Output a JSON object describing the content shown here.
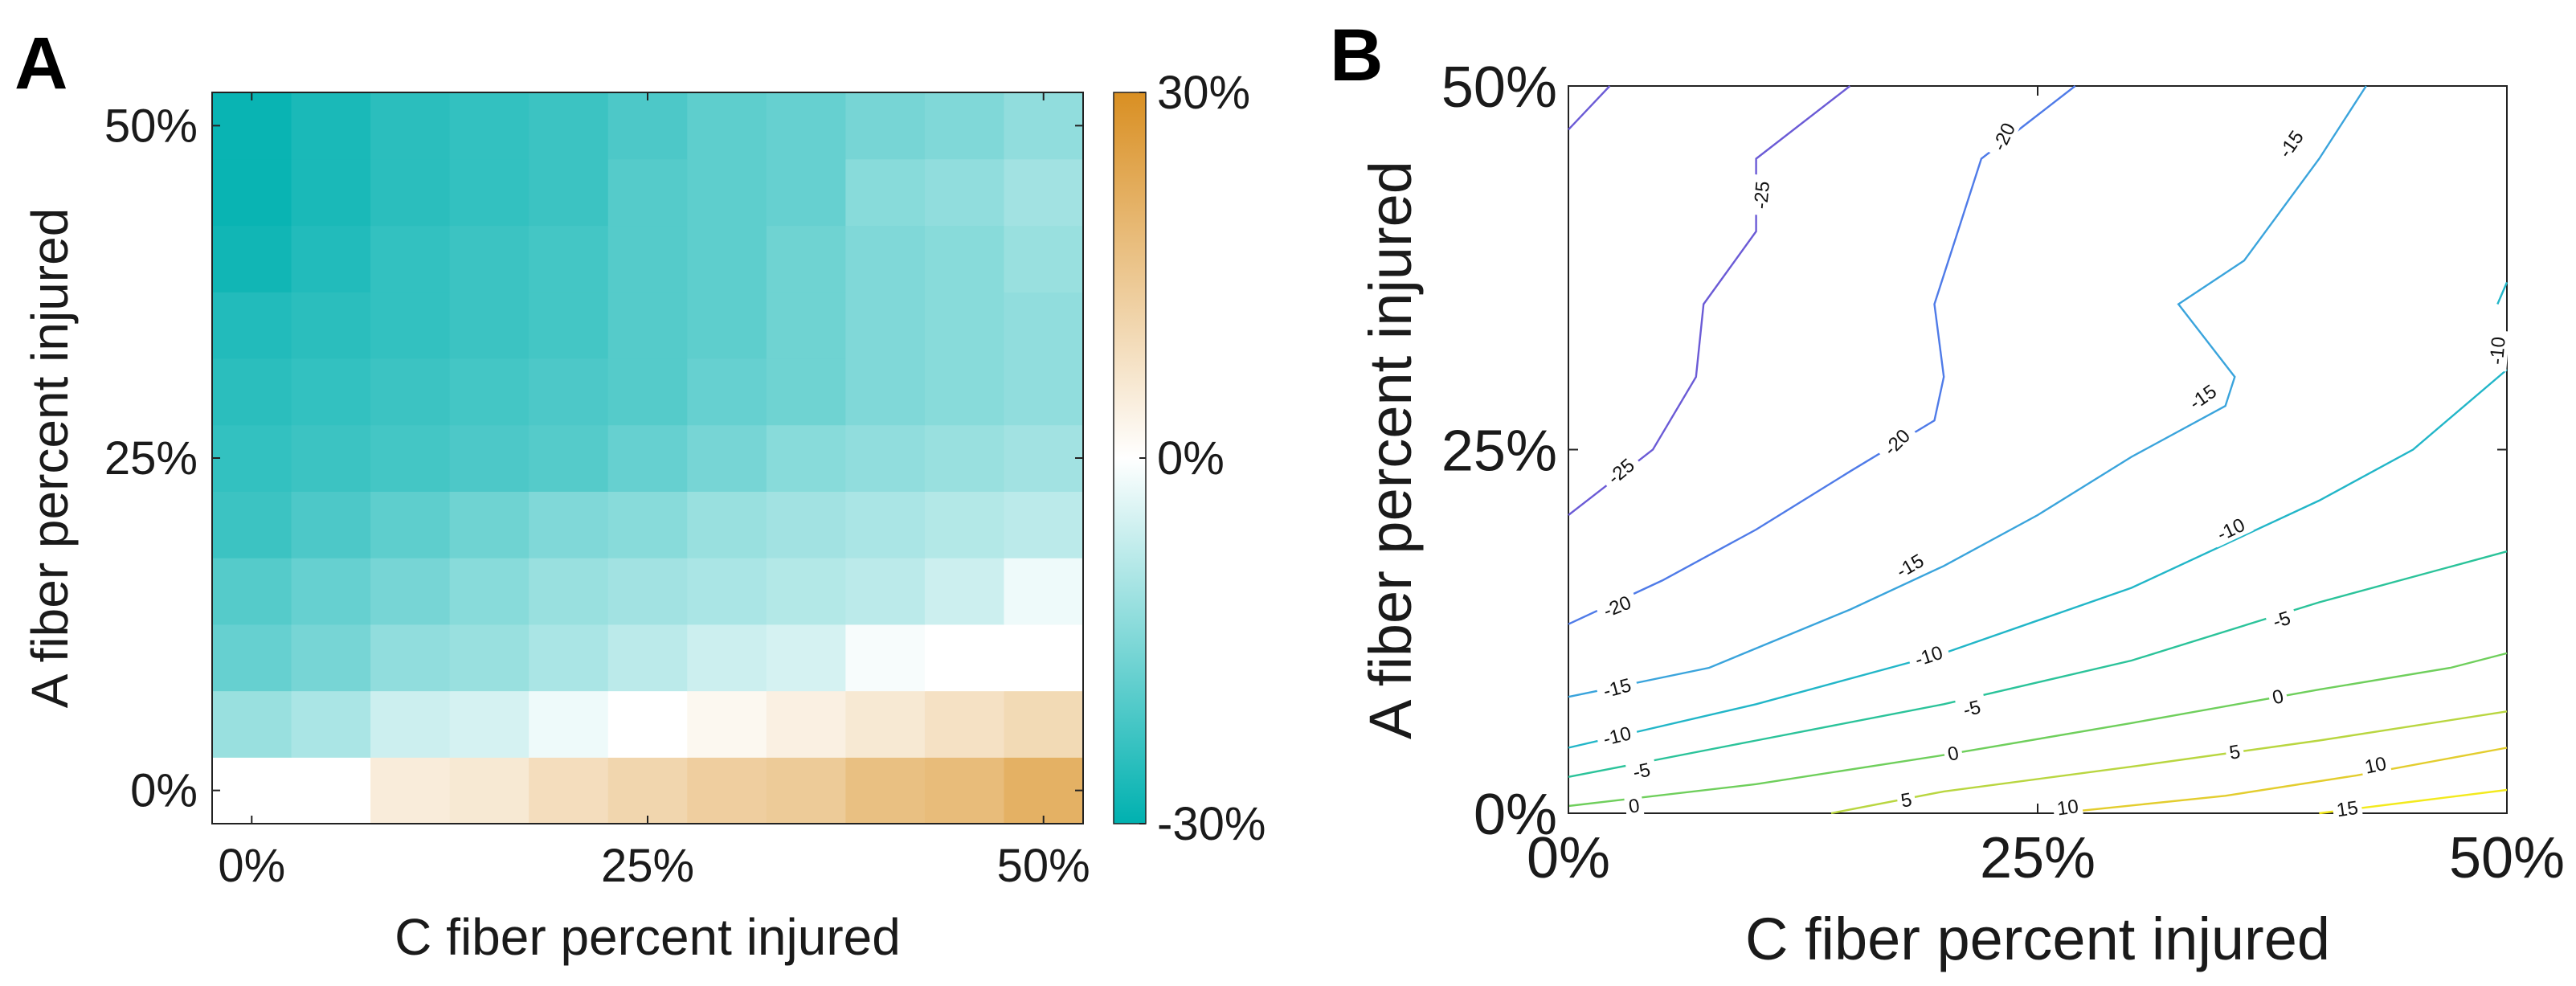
{
  "panels": {
    "a": {
      "letter": "A"
    },
    "b": {
      "letter": "B"
    }
  },
  "chart_data": [
    {
      "type": "heatmap",
      "xlabel": "C fiber percent injured",
      "ylabel": "A fiber percent injured",
      "x_ticks": [
        "0%",
        "25%",
        "50%"
      ],
      "y_ticks": [
        "0%",
        "25%",
        "50%"
      ],
      "xlim": [
        0,
        50
      ],
      "ylim": [
        0,
        50
      ],
      "x": [
        0,
        5,
        10,
        15,
        20,
        25,
        30,
        35,
        40,
        45,
        50
      ],
      "y": [
        0,
        5,
        10,
        15,
        20,
        25,
        30,
        35,
        40,
        45,
        50
      ],
      "values": [
        [
          0,
          0,
          5,
          6,
          9,
          11,
          13,
          14,
          17,
          18,
          21
        ],
        [
          -12,
          -10,
          -6,
          -5,
          -2,
          0,
          2,
          4,
          6,
          8,
          10
        ],
        [
          -18,
          -16,
          -13,
          -12,
          -10,
          -8,
          -6,
          -5,
          -1,
          0,
          0
        ],
        [
          -20,
          -18,
          -16,
          -14,
          -12,
          -11,
          -10,
          -9,
          -8,
          -6,
          -2
        ],
        [
          -23,
          -21,
          -19,
          -17,
          -15,
          -14,
          -12,
          -11,
          -10,
          -9,
          -8
        ],
        [
          -24,
          -23,
          -22,
          -21,
          -20,
          -18,
          -16,
          -14,
          -13,
          -12,
          -11
        ],
        [
          -25,
          -24,
          -23,
          -22,
          -21,
          -20,
          -18,
          -17,
          -15,
          -14,
          -13
        ],
        [
          -26,
          -25,
          -24,
          -23,
          -22,
          -20,
          -19,
          -17,
          -15,
          -14,
          -13
        ],
        [
          -28,
          -26,
          -24,
          -23,
          -22,
          -20,
          -19,
          -17,
          -15,
          -14,
          -12
        ],
        [
          -29,
          -27,
          -25,
          -24,
          -23,
          -20,
          -19,
          -18,
          -14,
          -13,
          -11
        ],
        [
          -29,
          -27,
          -25,
          -24,
          -23,
          -21,
          -19,
          -18,
          -16,
          -15,
          -13
        ]
      ],
      "colorbar": {
        "range": [
          -30,
          30
        ],
        "ticks": [
          "30%",
          "0%",
          "-30%"
        ],
        "low_color": "#00b1b0",
        "mid_color": "#ffffff",
        "high_color": "#d98f22"
      }
    },
    {
      "type": "line",
      "subtype": "contour",
      "xlabel": "C fiber percent injured",
      "ylabel": "A fiber percent injured",
      "x_ticks": [
        "0%",
        "25%",
        "50%"
      ],
      "y_ticks": [
        "0%",
        "25%",
        "50%"
      ],
      "xlim": [
        0,
        50
      ],
      "ylim": [
        0,
        50
      ],
      "series": [
        {
          "level": -25,
          "color": "#6b5bd6",
          "points": [
            [
              0,
              20.5
            ],
            [
              2.5,
              23
            ],
            [
              4.5,
              25
            ],
            [
              6.8,
              30
            ],
            [
              7.2,
              35
            ],
            [
              10,
              40
            ],
            [
              10,
              45
            ],
            [
              15,
              50
            ]
          ],
          "labels": [
            {
              "text": "-25",
              "x": 2.8,
              "y": 23.5,
              "angle": -40
            },
            {
              "text": "-25",
              "x": 10.3,
              "y": 42.5,
              "angle": -85
            }
          ]
        },
        {
          "level": -25,
          "color": "#6b5bd6",
          "points": [
            [
              0,
              47
            ],
            [
              2.2,
              50
            ]
          ],
          "labels": []
        },
        {
          "level": -20,
          "color": "#4f7be8",
          "points": [
            [
              0,
              13
            ],
            [
              5,
              16
            ],
            [
              10,
              19.5
            ],
            [
              15,
              23.5
            ],
            [
              19.5,
              27
            ],
            [
              20,
              30
            ],
            [
              19.5,
              35
            ],
            [
              22,
              45
            ],
            [
              27,
              50
            ]
          ],
          "labels": [
            {
              "text": "-20",
              "x": 2.6,
              "y": 14.2,
              "angle": -22
            },
            {
              "text": "-20",
              "x": 17.5,
              "y": 25.5,
              "angle": -45
            },
            {
              "text": "-20",
              "x": 23.2,
              "y": 46.5,
              "angle": -65
            }
          ]
        },
        {
          "level": -15,
          "color": "#3aa4dc",
          "points": [
            [
              0,
              8
            ],
            [
              7.5,
              10
            ],
            [
              15,
              14
            ],
            [
              20,
              17
            ],
            [
              25,
              20.5
            ],
            [
              30,
              24.5
            ],
            [
              35,
              28
            ],
            [
              35.5,
              30
            ],
            [
              32.5,
              35
            ],
            [
              36,
              38
            ],
            [
              40,
              45
            ],
            [
              42.5,
              50
            ]
          ],
          "labels": [
            {
              "text": "-15",
              "x": 2.6,
              "y": 8.6,
              "angle": -15
            },
            {
              "text": "-15",
              "x": 18.2,
              "y": 17,
              "angle": -30
            },
            {
              "text": "-15",
              "x": 33.8,
              "y": 28.6,
              "angle": -35
            },
            {
              "text": "-15",
              "x": 38.5,
              "y": 46,
              "angle": -55
            }
          ]
        },
        {
          "level": -10,
          "color": "#22b6c8",
          "points": [
            [
              0,
              4.5
            ],
            [
              10,
              7.5
            ],
            [
              20,
              11
            ],
            [
              30,
              15.5
            ],
            [
              40,
              21.5
            ],
            [
              45,
              25
            ],
            [
              50,
              30.5
            ]
          ],
          "labels": [
            {
              "text": "-10",
              "x": 2.6,
              "y": 5.3,
              "angle": -14
            },
            {
              "text": "-10",
              "x": 19.2,
              "y": 10.8,
              "angle": -18
            },
            {
              "text": "-10",
              "x": 35.3,
              "y": 19.5,
              "angle": -25
            }
          ]
        },
        {
          "level": -10,
          "color": "#22b6c8",
          "points": [
            [
              49.5,
              35
            ],
            [
              50,
              36.5
            ]
          ],
          "labels": [
            {
              "text": "-10",
              "x": 49.5,
              "y": 31.8,
              "angle": -85
            }
          ]
        },
        {
          "level": -5,
          "color": "#2bc39a",
          "points": [
            [
              0,
              2.5
            ],
            [
              10,
              5
            ],
            [
              20,
              7.5
            ],
            [
              30,
              10.5
            ],
            [
              40,
              14.5
            ],
            [
              50,
              18
            ]
          ],
          "labels": [
            {
              "text": "-5",
              "x": 3.9,
              "y": 2.9,
              "angle": -12
            },
            {
              "text": "-5",
              "x": 21.5,
              "y": 7.2,
              "angle": -14
            },
            {
              "text": "-5",
              "x": 38,
              "y": 13.3,
              "angle": -18
            }
          ]
        },
        {
          "level": 0,
          "color": "#6fcf5c",
          "points": [
            [
              0,
              0.5
            ],
            [
              10,
              2
            ],
            [
              20,
              4
            ],
            [
              30,
              6.2
            ],
            [
              40,
              8.5
            ],
            [
              47,
              10
            ],
            [
              50,
              11
            ]
          ],
          "labels": [
            {
              "text": "0",
              "x": 3.5,
              "y": 0.5,
              "angle": -8
            },
            {
              "text": "0",
              "x": 20.5,
              "y": 4.1,
              "angle": -12
            },
            {
              "text": "0",
              "x": 37.8,
              "y": 8,
              "angle": -14
            }
          ]
        },
        {
          "level": 5,
          "color": "#b9d640",
          "points": [
            [
              14,
              0
            ],
            [
              20,
              1.5
            ],
            [
              30,
              3.2
            ],
            [
              40,
              5
            ],
            [
              50,
              7
            ]
          ],
          "labels": [
            {
              "text": "5",
              "x": 18,
              "y": 0.9,
              "angle": -10
            },
            {
              "text": "5",
              "x": 35.5,
              "y": 4.2,
              "angle": -10
            }
          ]
        },
        {
          "level": 10,
          "color": "#e3cd2e",
          "points": [
            [
              26,
              0
            ],
            [
              35,
              1.2
            ],
            [
              42,
              2.6
            ],
            [
              50,
              4.5
            ]
          ],
          "labels": [
            {
              "text": "10",
              "x": 26.6,
              "y": 0.4,
              "angle": -8
            },
            {
              "text": "10",
              "x": 43,
              "y": 3.3,
              "angle": -12
            }
          ]
        },
        {
          "level": 15,
          "color": "#f3ea1d",
          "points": [
            [
              40,
              0
            ],
            [
              45,
              0.8
            ],
            [
              50,
              1.6
            ]
          ],
          "labels": [
            {
              "text": "15",
              "x": 41.5,
              "y": 0.3,
              "angle": -8
            }
          ]
        }
      ]
    }
  ]
}
